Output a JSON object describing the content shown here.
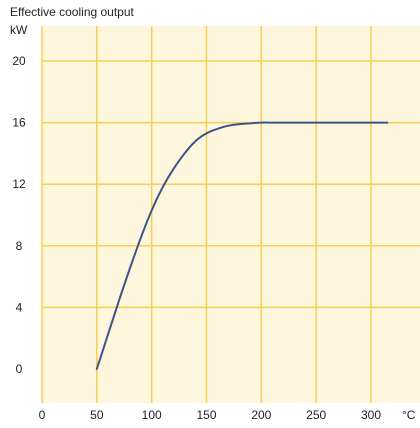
{
  "chart_data": {
    "type": "line",
    "title": "Effective cooling output",
    "ylabel": "kW",
    "xlabel": "°C",
    "xlim": [
      0,
      340
    ],
    "ylim": [
      -2,
      22
    ],
    "x_ticks": [
      0,
      50,
      100,
      150,
      200,
      250,
      300
    ],
    "y_ticks": [
      0,
      4,
      8,
      12,
      16,
      20
    ],
    "grid": true,
    "series": [
      {
        "x": [
          50,
          60,
          70,
          80,
          90,
          100,
          110,
          120,
          130,
          140,
          150,
          160,
          170,
          180,
          190,
          200,
          210,
          220,
          250,
          280,
          315
        ],
        "y": [
          0,
          2.2,
          4.4,
          6.5,
          8.5,
          10.3,
          11.8,
          13.0,
          14.0,
          14.8,
          15.3,
          15.6,
          15.8,
          15.9,
          15.95,
          16.0,
          16.0,
          16.0,
          16.0,
          16.0,
          16.0
        ]
      }
    ]
  },
  "colors": {
    "plot_bg": "#fef6dc",
    "grid": "#f5cf56",
    "line": "#3b548a"
  }
}
